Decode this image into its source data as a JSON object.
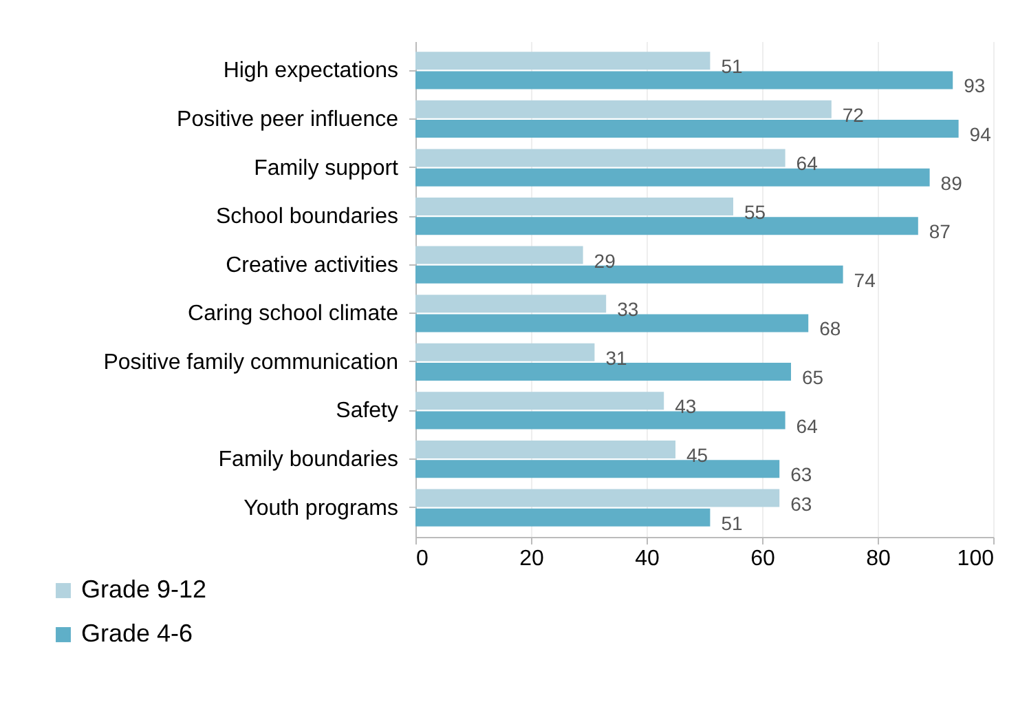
{
  "chart_data": {
    "type": "bar",
    "orientation": "horizontal",
    "categories": [
      "High expectations",
      "Positive peer influence",
      "Family support",
      "School boundaries",
      "Creative activities",
      "Caring school climate",
      "Positive family communication",
      "Safety",
      "Family boundaries",
      "Youth programs"
    ],
    "series": [
      {
        "name": "Grade 9-12",
        "color": "#b3d3df",
        "values": [
          51,
          72,
          64,
          55,
          29,
          33,
          31,
          43,
          45,
          63
        ]
      },
      {
        "name": "Grade 4-6",
        "color": "#5fafc8",
        "values": [
          93,
          94,
          89,
          87,
          74,
          68,
          65,
          64,
          63,
          51
        ]
      }
    ],
    "xlim": [
      0,
      100
    ],
    "xticks": [
      0,
      20,
      40,
      60,
      80,
      100
    ],
    "grid": "x",
    "legend": "bottom left",
    "data_labels": true
  }
}
